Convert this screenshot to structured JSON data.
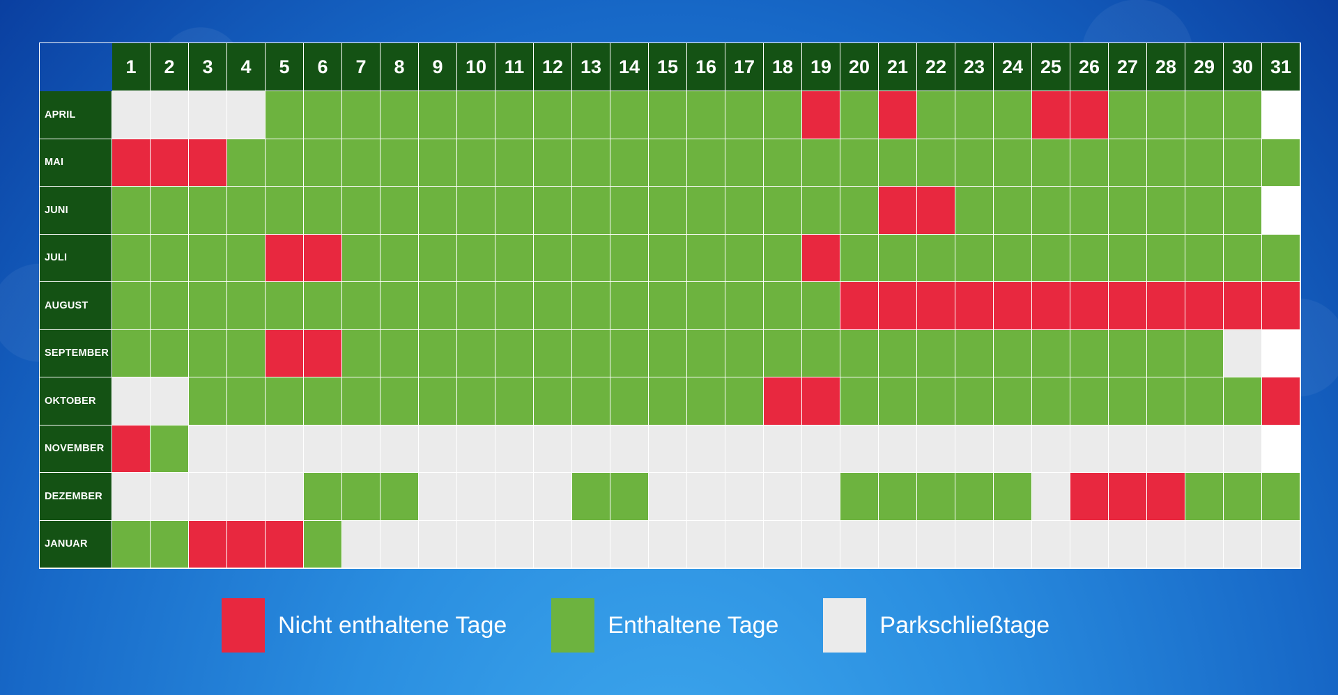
{
  "calendar": {
    "days": [
      "1",
      "2",
      "3",
      "4",
      "5",
      "6",
      "7",
      "8",
      "9",
      "10",
      "11",
      "12",
      "13",
      "14",
      "15",
      "16",
      "17",
      "18",
      "19",
      "20",
      "21",
      "22",
      "23",
      "24",
      "25",
      "26",
      "27",
      "28",
      "29",
      "30",
      "31"
    ],
    "months": [
      {
        "label": "APRIL",
        "status": "LLLLGGGGGGGGGGGGGGRGRGGGRRGGGGW"
      },
      {
        "label": "MAI",
        "status": "RRRGGGGGGGGGGGGGGGGGGGGGGGGGGGG"
      },
      {
        "label": "JUNI",
        "status": "GGGGGGGGGGGGGGGGGGGGRRGGGGGGGGW"
      },
      {
        "label": "JULI",
        "status": "GGGGRRGGGGGGGGGGGGRGGGGGGGGGGGG"
      },
      {
        "label": "AUGUST",
        "status": "GGGGGGGGGGGGGGGGGGGRRRRRRRRRRRR"
      },
      {
        "label": "SEPTEMBER",
        "status": "GGGGRRGGGGGGGGGGGGGGGGGGGGGGGLW"
      },
      {
        "label": "OKTOBER",
        "status": "LLGGGGGGGGGGGGGGGRRGGGGGGGGGGGR"
      },
      {
        "label": "NOVEMBER",
        "status": "RGLLLLLLLLLLLLLLLLLLLLLLLLLLLLW"
      },
      {
        "label": "DEZEMBER",
        "status": "LLLLLGGGLLLLGGLLLLLGGGGGLRRRGGG"
      },
      {
        "label": "JANUAR",
        "status": "GGRRRGLLLLLLLLLLLLLLLLLLLLLLLLL"
      }
    ],
    "status_legend": {
      "R": "Nicht enthaltene Tage",
      "G": "Enthaltene Tage",
      "L": "Parkschließtage",
      "W": ""
    }
  },
  "legend": {
    "items": [
      {
        "key": "not-included",
        "label": "Nicht enthaltene Tage",
        "color": "#e8283f"
      },
      {
        "key": "included",
        "label": "Enthaltene Tage",
        "color": "#6db33f"
      },
      {
        "key": "park-closed",
        "label": "Parkschließtage",
        "color": "#ebebeb"
      }
    ]
  },
  "colors": {
    "header_green": "#145214",
    "red": "#e8283f",
    "green": "#6db33f",
    "closed": "#ebebeb",
    "none": "#ffffff",
    "background_top": "#0a3fa0",
    "background_bottom": "#3fa9ee"
  }
}
